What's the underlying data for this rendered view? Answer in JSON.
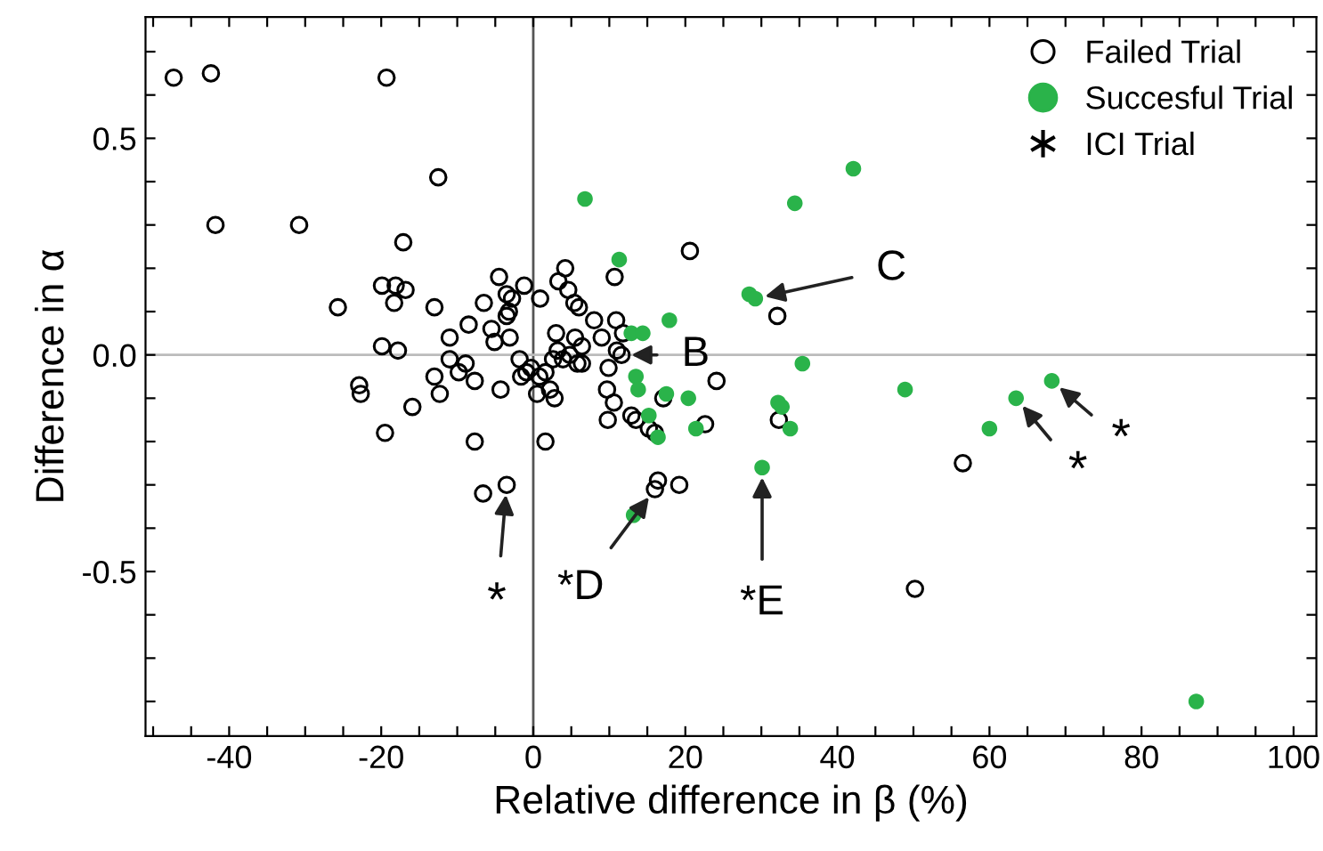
{
  "chart_data": {
    "type": "scatter",
    "xlabel": "Relative difference in β (%)",
    "ylabel": "Difference in α",
    "xlim": [
      -51,
      103
    ],
    "ylim": [
      -0.88,
      0.78
    ],
    "xticks": [
      {
        "value": -50,
        "label": null
      },
      {
        "value": -45,
        "label": null
      },
      -40,
      {
        "value": -35,
        "label": null
      },
      {
        "value": -30,
        "label": null
      },
      {
        "value": -25,
        "label": null
      },
      -20,
      {
        "value": -15,
        "label": null
      },
      {
        "value": -10,
        "label": null
      },
      {
        "value": -5,
        "label": null
      },
      0,
      {
        "value": 5,
        "label": null
      },
      {
        "value": 10,
        "label": null
      },
      {
        "value": 15,
        "label": null
      },
      20,
      {
        "value": 25,
        "label": null
      },
      {
        "value": 30,
        "label": null
      },
      {
        "value": 35,
        "label": null
      },
      40,
      {
        "value": 45,
        "label": null
      },
      {
        "value": 50,
        "label": null
      },
      {
        "value": 55,
        "label": null
      },
      60,
      {
        "value": 65,
        "label": null
      },
      {
        "value": 70,
        "label": null
      },
      {
        "value": 75,
        "label": null
      },
      80,
      {
        "value": 85,
        "label": null
      },
      {
        "value": 90,
        "label": null
      },
      {
        "value": 95,
        "label": null
      },
      100
    ],
    "yticks": [
      {
        "value": -0.8,
        "label": null
      },
      {
        "value": -0.7,
        "label": null
      },
      {
        "value": -0.6,
        "label": null
      },
      {
        "value": -0.5,
        "label": "-0.5"
      },
      {
        "value": -0.4,
        "label": null
      },
      {
        "value": -0.3,
        "label": null
      },
      {
        "value": -0.2,
        "label": null
      },
      {
        "value": -0.1,
        "label": null
      },
      {
        "value": 0,
        "label": "0.0"
      },
      {
        "value": 0.1,
        "label": null
      },
      {
        "value": 0.2,
        "label": null
      },
      {
        "value": 0.3,
        "label": null
      },
      {
        "value": 0.4,
        "label": null
      },
      {
        "value": 0.5,
        "label": "0.5"
      },
      {
        "value": 0.6,
        "label": null
      },
      {
        "value": 0.7,
        "label": null
      }
    ],
    "grid": false,
    "legend": "top right",
    "ref_lines": [
      {
        "axis": "x",
        "value": 0,
        "color": "#555555"
      },
      {
        "axis": "y",
        "value": 0,
        "color": "#bbbbbb"
      }
    ],
    "series": [
      {
        "name": "Failed Trial",
        "color": "#000000",
        "marker": "circle",
        "x": [
          -47.3,
          -42.4,
          -19.3,
          -12.5,
          -41.8,
          -30.8,
          -17.1,
          -25.7,
          -19.9,
          -18.1,
          -16.8,
          -18.3,
          -13.0,
          -4.5,
          -3.5,
          -2.8,
          -1.2,
          -6.5,
          -3.5,
          -3.2,
          -8.5,
          -11.0,
          -5.5,
          -5.1,
          -19.9,
          -17.8,
          -11.0,
          -8.9,
          -9.8,
          -13.0,
          -12.3,
          -7.7,
          -4.3,
          -1.8,
          -1.6,
          -0.9,
          -0.3,
          -22.9,
          -22.7,
          -15.9,
          -19.5,
          -7.7,
          -6.6,
          -3.5,
          1.6,
          0.5,
          1.6,
          2.2,
          2.8,
          0.9,
          3.3,
          4.2,
          4.6,
          5.4,
          6.0,
          8.0,
          9.0,
          10.7,
          10.9,
          3.0,
          3.2,
          2.6,
          4.8,
          5.5,
          6.4,
          5.8,
          6.4,
          9.9,
          9.7,
          10.6,
          9.8,
          11.6,
          11.8,
          12.9,
          13.5,
          15.2,
          16.0,
          17.1,
          22.6,
          24.1,
          20.6,
          32.1,
          32.3,
          16.4,
          16.0,
          19.2,
          0.8,
          3.9,
          -3.1,
          56.5,
          50.2,
          11.0
        ],
        "values": [
          0.64,
          0.65,
          0.64,
          0.41,
          0.3,
          0.3,
          0.26,
          0.11,
          0.16,
          0.16,
          0.15,
          0.12,
          0.11,
          0.18,
          0.14,
          0.13,
          0.16,
          0.12,
          0.09,
          0.1,
          0.07,
          0.04,
          0.06,
          0.03,
          0.02,
          0.01,
          -0.01,
          -0.02,
          -0.04,
          -0.05,
          -0.09,
          -0.06,
          -0.08,
          -0.01,
          -0.05,
          -0.04,
          -0.03,
          -0.07,
          -0.09,
          -0.12,
          -0.18,
          -0.2,
          -0.32,
          -0.3,
          -0.2,
          -0.09,
          -0.04,
          -0.08,
          -0.1,
          0.13,
          0.17,
          0.2,
          0.15,
          0.12,
          0.11,
          0.08,
          0.04,
          0.18,
          0.08,
          0.05,
          0.01,
          -0.01,
          0.0,
          0.04,
          0.02,
          -0.02,
          -0.02,
          -0.03,
          -0.08,
          -0.11,
          -0.15,
          0.0,
          0.05,
          -0.14,
          -0.15,
          -0.17,
          -0.18,
          -0.1,
          -0.16,
          -0.06,
          0.24,
          0.09,
          -0.15,
          -0.29,
          -0.31,
          -0.3,
          -0.05,
          -0.01,
          0.04,
          -0.25,
          -0.54,
          0.01
        ]
      },
      {
        "name": "Succesful Trial",
        "color": "#2ab34a",
        "marker": "circle",
        "x": [
          42.1,
          48.9,
          63.5,
          68.2,
          60.0,
          87.2,
          6.8,
          11.3,
          17.9,
          12.9,
          14.4,
          13.5,
          13.8,
          17.5,
          20.4,
          15.2,
          16.4,
          21.4,
          13.2,
          28.4,
          29.2,
          34.4,
          35.4,
          32.2,
          32.7,
          33.8,
          30.1
        ],
        "values": [
          0.43,
          -0.08,
          -0.1,
          -0.06,
          -0.17,
          -0.8,
          0.36,
          0.22,
          0.08,
          0.05,
          0.05,
          -0.05,
          -0.08,
          -0.09,
          -0.1,
          -0.14,
          -0.19,
          -0.17,
          -0.37,
          0.14,
          0.13,
          0.35,
          -0.02,
          -0.11,
          -0.12,
          -0.17,
          -0.26
        ]
      },
      {
        "name": "ICI Trial",
        "color": "#000000",
        "marker": "star"
      }
    ],
    "annotations": [
      {
        "text": "B",
        "x": 11.6,
        "y": 0.0
      },
      {
        "text": "C",
        "x": 29.2,
        "y": 0.13
      },
      {
        "text": "*D",
        "x": 16.0,
        "y": -0.31
      },
      {
        "text": "*E",
        "x": 30.1,
        "y": -0.26
      },
      {
        "text": "*",
        "x": -3.5,
        "y": -0.3
      },
      {
        "text": "*",
        "x": 63.5,
        "y": -0.1
      },
      {
        "text": "*",
        "x": 68.2,
        "y": -0.06
      }
    ]
  }
}
